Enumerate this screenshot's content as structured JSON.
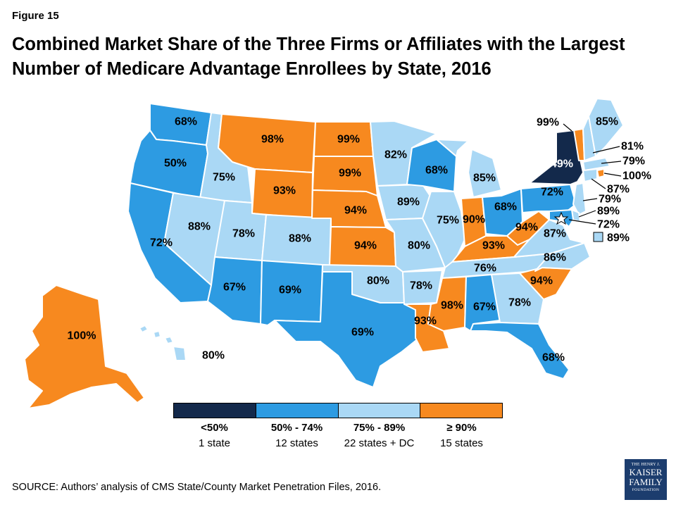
{
  "figure_label": "Figure 15",
  "title": "Combined Market Share of the Three Firms or Affiliates with the Largest Number of Medicare Advantage Enrollees by State, 2016",
  "colors": {
    "lt50": "#13294b",
    "r50_74": "#2d9be2",
    "r75_89": "#aad8f5",
    "ge90": "#f7891f"
  },
  "states": [
    {
      "id": "WA",
      "value": "68%",
      "color": "r50_74"
    },
    {
      "id": "OR",
      "value": "50%",
      "color": "r50_74"
    },
    {
      "id": "CA",
      "value": "72%",
      "color": "r50_74"
    },
    {
      "id": "ID",
      "value": "75%",
      "color": "r75_89"
    },
    {
      "id": "NV",
      "value": "88%",
      "color": "r75_89"
    },
    {
      "id": "MT",
      "value": "98%",
      "color": "ge90"
    },
    {
      "id": "WY",
      "value": "93%",
      "color": "ge90"
    },
    {
      "id": "UT",
      "value": "78%",
      "color": "r75_89"
    },
    {
      "id": "CO",
      "value": "88%",
      "color": "r75_89"
    },
    {
      "id": "AZ",
      "value": "67%",
      "color": "r50_74"
    },
    {
      "id": "NM",
      "value": "69%",
      "color": "r50_74"
    },
    {
      "id": "ND",
      "value": "99%",
      "color": "ge90"
    },
    {
      "id": "SD",
      "value": "99%",
      "color": "ge90"
    },
    {
      "id": "NE",
      "value": "94%",
      "color": "ge90"
    },
    {
      "id": "KS",
      "value": "94%",
      "color": "ge90"
    },
    {
      "id": "OK",
      "value": "80%",
      "color": "r75_89"
    },
    {
      "id": "TX",
      "value": "69%",
      "color": "r50_74"
    },
    {
      "id": "MN",
      "value": "82%",
      "color": "r75_89"
    },
    {
      "id": "IA",
      "value": "89%",
      "color": "r75_89"
    },
    {
      "id": "MO",
      "value": "80%",
      "color": "r75_89"
    },
    {
      "id": "AR",
      "value": "78%",
      "color": "r75_89"
    },
    {
      "id": "LA",
      "value": "93%",
      "color": "ge90"
    },
    {
      "id": "WI",
      "value": "68%",
      "color": "r50_74"
    },
    {
      "id": "IL",
      "value": "75%",
      "color": "r75_89"
    },
    {
      "id": "MI",
      "value": "85%",
      "color": "r75_89"
    },
    {
      "id": "IN",
      "value": "90%",
      "color": "ge90"
    },
    {
      "id": "OH",
      "value": "68%",
      "color": "r50_74"
    },
    {
      "id": "KY",
      "value": "93%",
      "color": "ge90"
    },
    {
      "id": "TN",
      "value": "76%",
      "color": "r75_89"
    },
    {
      "id": "MS",
      "value": "98%",
      "color": "ge90"
    },
    {
      "id": "AL",
      "value": "67%",
      "color": "r50_74"
    },
    {
      "id": "GA",
      "value": "78%",
      "color": "r75_89"
    },
    {
      "id": "FL",
      "value": "68%",
      "color": "r50_74"
    },
    {
      "id": "SC",
      "value": "94%",
      "color": "ge90"
    },
    {
      "id": "NC",
      "value": "86%",
      "color": "r75_89"
    },
    {
      "id": "VA",
      "value": "87%",
      "color": "r75_89"
    },
    {
      "id": "WV",
      "value": "94%",
      "color": "ge90"
    },
    {
      "id": "PA",
      "value": "72%",
      "color": "r50_74"
    },
    {
      "id": "NY",
      "value": "49%",
      "color": "lt50"
    },
    {
      "id": "VT",
      "value": "99%",
      "color": "ge90"
    },
    {
      "id": "NH",
      "value": "81%",
      "color": "r75_89"
    },
    {
      "id": "ME",
      "value": "85%",
      "color": "r75_89"
    },
    {
      "id": "MA",
      "value": "79%",
      "color": "r75_89"
    },
    {
      "id": "RI",
      "value": "100%",
      "color": "ge90"
    },
    {
      "id": "CT",
      "value": "87%",
      "color": "r75_89"
    },
    {
      "id": "NJ",
      "value": "79%",
      "color": "r75_89"
    },
    {
      "id": "DE",
      "value": "89%",
      "color": "r75_89"
    },
    {
      "id": "MD",
      "value": "72%",
      "color": "r50_74"
    },
    {
      "id": "DC",
      "value": "89%",
      "color": "r75_89"
    },
    {
      "id": "AK",
      "value": "100%",
      "color": "ge90"
    },
    {
      "id": "HI",
      "value": "80%",
      "color": "r75_89"
    }
  ],
  "legend": [
    {
      "range": "<50%",
      "count": "1 state",
      "color": "lt50"
    },
    {
      "range": "50% - 74%",
      "count": "12 states",
      "color": "r50_74"
    },
    {
      "range": "75% - 89%",
      "count": "22 states + DC",
      "color": "r75_89"
    },
    {
      "range": "≥ 90%",
      "count": "15 states",
      "color": "ge90"
    }
  ],
  "source": "SOURCE: Authors’ analysis of CMS State/County Market Penetration Files, 2016.",
  "logo": {
    "line1": "THE HENRY J.",
    "line2a": "KAISER",
    "line2b": "FAMILY",
    "line3": "FOUNDATION"
  }
}
